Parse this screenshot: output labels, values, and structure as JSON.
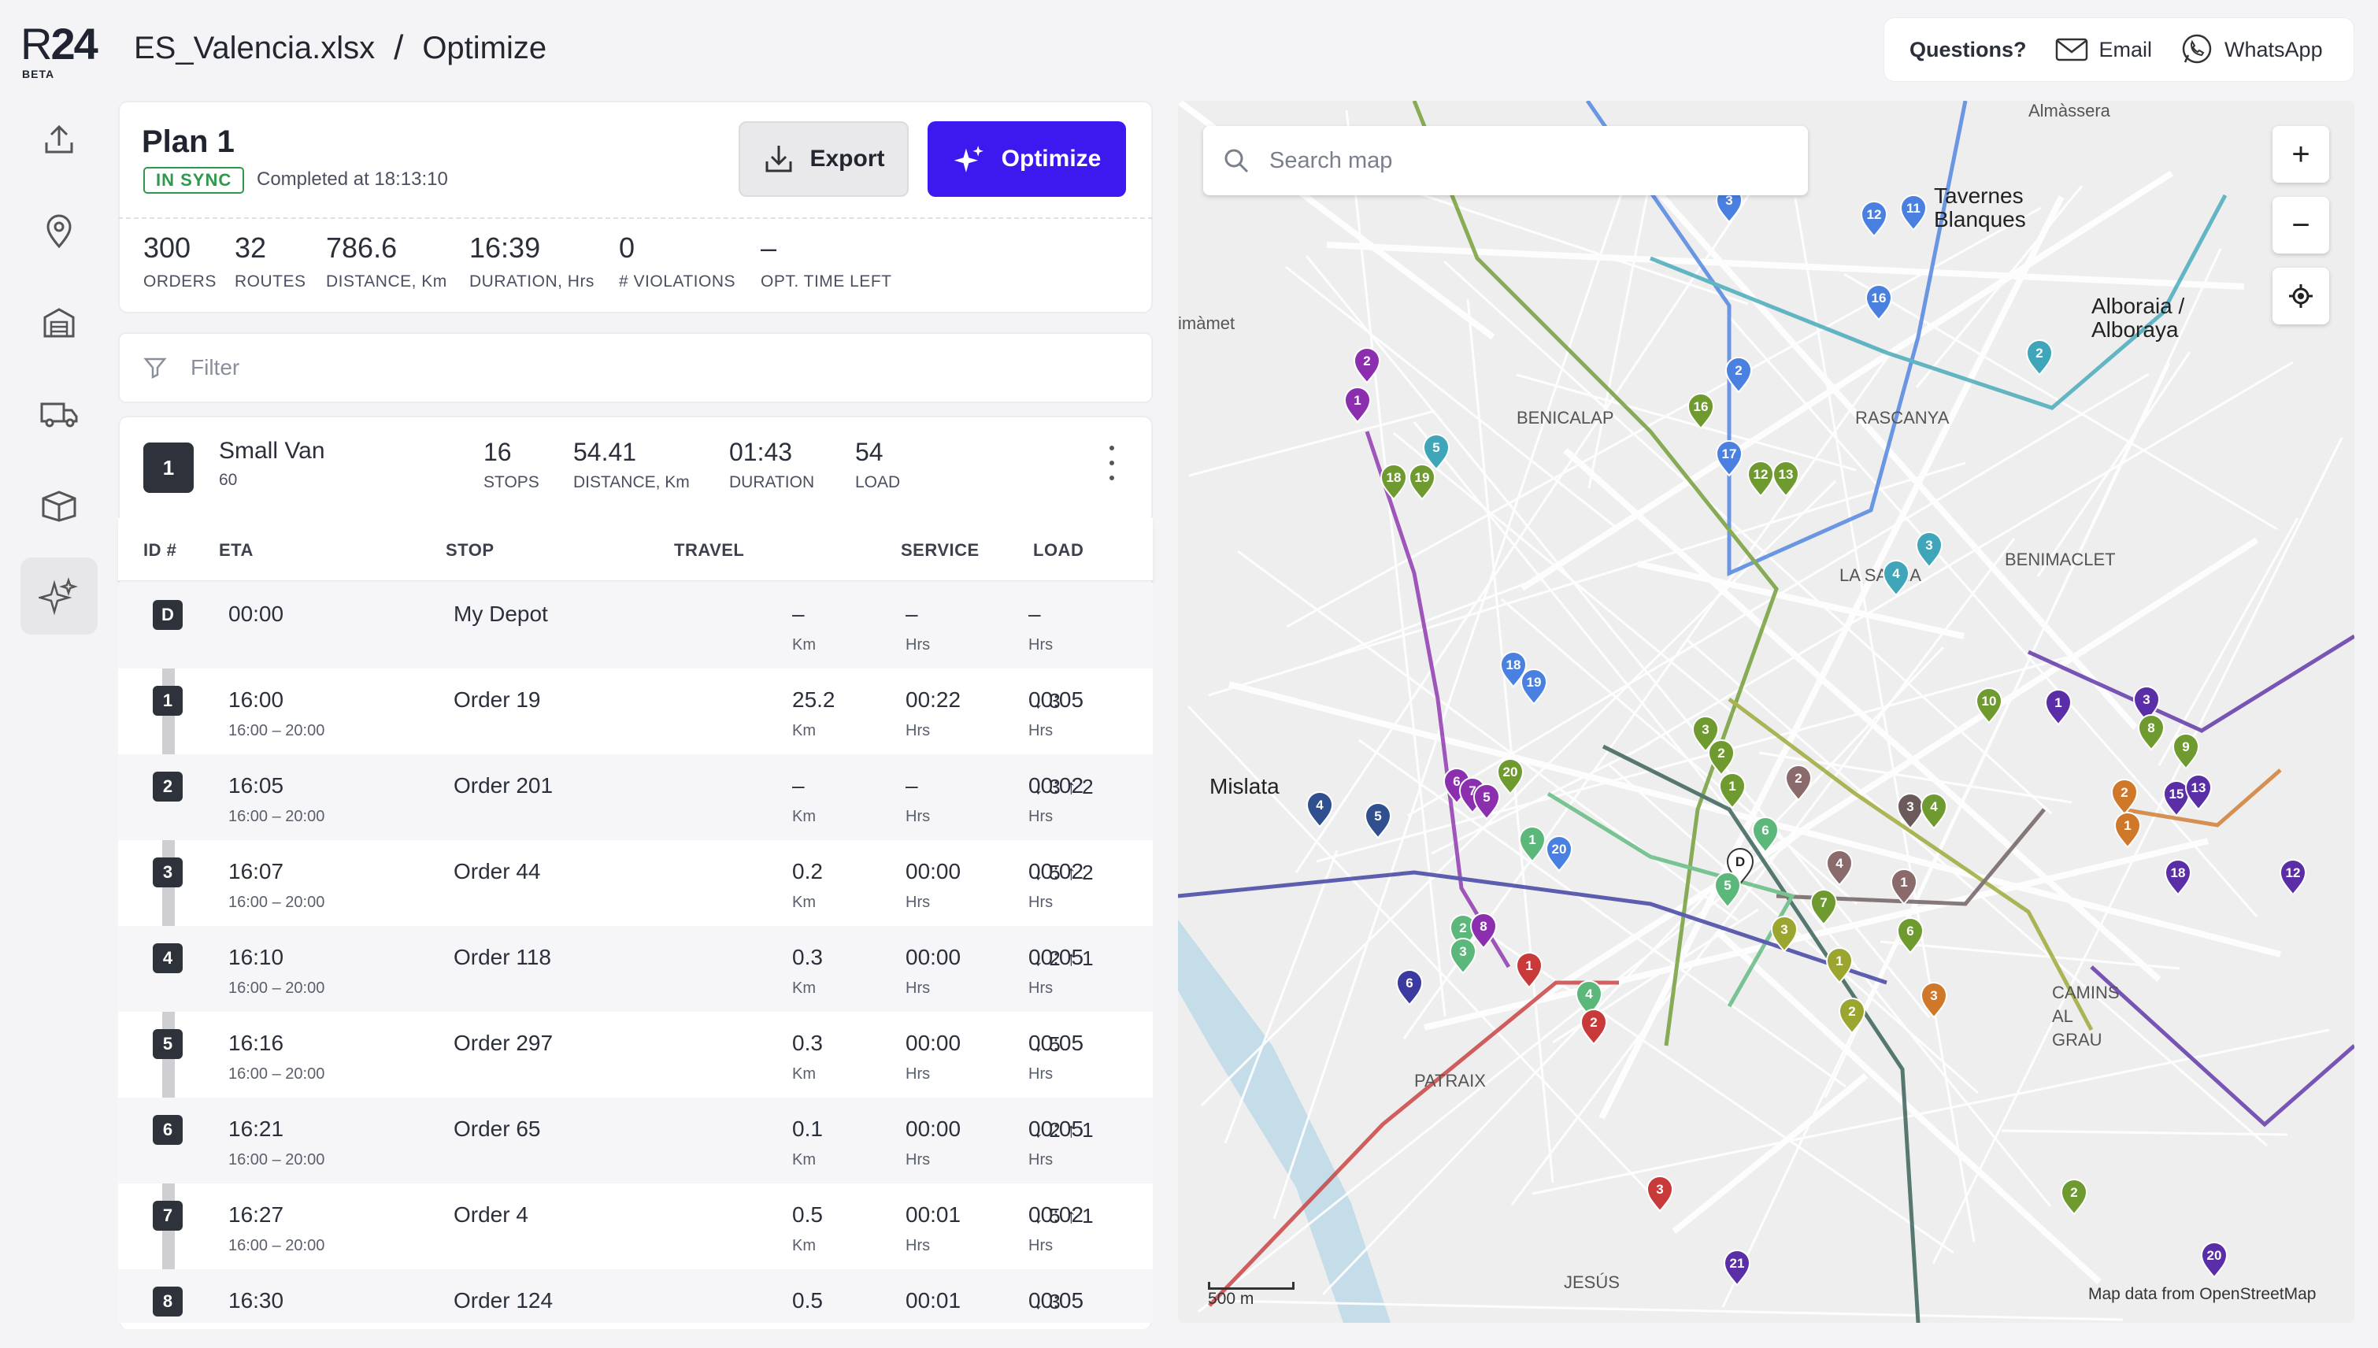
{
  "app": {
    "logo_r": "R",
    "logo_num": "24",
    "beta": "BETA"
  },
  "breadcrumb": {
    "file": "ES_Valencia.xlsx",
    "sep": "/",
    "page": "Optimize"
  },
  "help": {
    "questions": "Questions?",
    "email": "Email",
    "whatsapp": "WhatsApp"
  },
  "plan": {
    "title": "Plan 1",
    "status": "IN SYNC",
    "completed": "Completed at 18:13:10",
    "export_label": "Export",
    "optimize_label": "Optimize",
    "stats": [
      {
        "value": "300",
        "label": "ORDERS"
      },
      {
        "value": "32",
        "label": "ROUTES"
      },
      {
        "value": "786.6",
        "label": "DISTANCE, Km"
      },
      {
        "value": "16:39",
        "label": "DURATION, Hrs"
      },
      {
        "value": "0",
        "label": "# VIOLATIONS"
      },
      {
        "value": "–",
        "label": "OPT. TIME LEFT"
      }
    ]
  },
  "filter": {
    "placeholder": "Filter"
  },
  "vehicle": {
    "number": "1",
    "name": "Small Van",
    "capacity": "60",
    "stats": [
      {
        "value": "16",
        "label": "STOPS"
      },
      {
        "value": "54.41",
        "label": "DISTANCE, Km"
      },
      {
        "value": "01:43",
        "label": "DURATION"
      },
      {
        "value": "54",
        "label": "LOAD"
      }
    ]
  },
  "table": {
    "headers": {
      "id": "ID #",
      "eta": "ETA",
      "stop": "STOP",
      "travel": "TRAVEL",
      "service": "SERVICE",
      "load": "LOAD"
    },
    "rows": [
      {
        "id": "D",
        "eta": "00:00",
        "window": "",
        "stop": "My Depot",
        "dist": "–",
        "dist_u": "Km",
        "time": "–",
        "time_u": "Hrs",
        "service": "–",
        "service_u": "Hrs",
        "load": ""
      },
      {
        "id": "1",
        "eta": "16:00",
        "window": "16:00 – 20:00",
        "stop": "Order 19",
        "dist": "25.2",
        "dist_u": "Km",
        "time": "00:22",
        "time_u": "Hrs",
        "service": "00:05",
        "service_u": "Hrs",
        "load": "↓ 3"
      },
      {
        "id": "2",
        "eta": "16:05",
        "window": "16:00 – 20:00",
        "stop": "Order 201",
        "dist": "–",
        "dist_u": "Km",
        "time": "–",
        "time_u": "Hrs",
        "service": "00:02",
        "service_u": "Hrs",
        "load": "↓ 3  ↑ 2"
      },
      {
        "id": "3",
        "eta": "16:07",
        "window": "16:00 – 20:00",
        "stop": "Order 44",
        "dist": "0.2",
        "dist_u": "Km",
        "time": "00:00",
        "time_u": "Hrs",
        "service": "00:02",
        "service_u": "Hrs",
        "load": "↓ 5  ↑ 2"
      },
      {
        "id": "4",
        "eta": "16:10",
        "window": "16:00 – 20:00",
        "stop": "Order 118",
        "dist": "0.3",
        "dist_u": "Km",
        "time": "00:00",
        "time_u": "Hrs",
        "service": "00:05",
        "service_u": "Hrs",
        "load": "↓ 2  ↑ 1"
      },
      {
        "id": "5",
        "eta": "16:16",
        "window": "16:00 – 20:00",
        "stop": "Order 297",
        "dist": "0.3",
        "dist_u": "Km",
        "time": "00:00",
        "time_u": "Hrs",
        "service": "00:05",
        "service_u": "Hrs",
        "load": "↓ 5"
      },
      {
        "id": "6",
        "eta": "16:21",
        "window": "16:00 – 20:00",
        "stop": "Order 65",
        "dist": "0.1",
        "dist_u": "Km",
        "time": "00:00",
        "time_u": "Hrs",
        "service": "00:05",
        "service_u": "Hrs",
        "load": "↓ 2  ↑ 1"
      },
      {
        "id": "7",
        "eta": "16:27",
        "window": "16:00 – 20:00",
        "stop": "Order 4",
        "dist": "0.5",
        "dist_u": "Km",
        "time": "00:01",
        "time_u": "Hrs",
        "service": "00:02",
        "service_u": "Hrs",
        "load": "↓ 5  ↑ 1"
      },
      {
        "id": "8",
        "eta": "16:30",
        "window": "16:00 – 20:00",
        "stop": "Order 124",
        "dist": "0.5",
        "dist_u": "Km",
        "time": "00:01",
        "time_u": "Hrs",
        "service": "00:05",
        "service_u": "Hrs",
        "load": "↓ 3"
      }
    ]
  },
  "map": {
    "search_placeholder": "Search map",
    "zoom_in": "+",
    "zoom_out": "−",
    "scale": "500 m",
    "attribution": "Map data from OpenStreetMap",
    "places": [
      "Tavernes Blanques",
      "Alboraia / Alboraya",
      "imàmet",
      "BENICALAP",
      "RASCANYA",
      "LA SAÏDIA",
      "BENIMACLET",
      "Mislata",
      "PATRAIX",
      "CAMINS AL GRAU",
      "JESÚS",
      "Almàssera"
    ],
    "markers": [
      {
        "label": "2",
        "color": "#8b2fae"
      },
      {
        "label": "1",
        "color": "#8b2fae"
      },
      {
        "label": "5",
        "color": "#3ea6b8"
      },
      {
        "label": "18",
        "color": "#6e9a2f"
      },
      {
        "label": "19",
        "color": "#6e9a2f"
      },
      {
        "label": "2",
        "color": "#4a80e0"
      },
      {
        "label": "16",
        "color": "#6e9a2f"
      },
      {
        "label": "17",
        "color": "#4a80e0"
      },
      {
        "label": "12",
        "color": "#6e9a2f"
      },
      {
        "label": "13",
        "color": "#6e9a2f"
      },
      {
        "label": "3",
        "color": "#4a80e0"
      },
      {
        "label": "12",
        "color": "#4a80e0"
      },
      {
        "label": "11",
        "color": "#4a80e0"
      },
      {
        "label": "16",
        "color": "#4a80e0"
      },
      {
        "label": "2",
        "color": "#3ea6b8"
      },
      {
        "label": "3",
        "color": "#3ea6b8"
      },
      {
        "label": "4",
        "color": "#3ea6b8"
      },
      {
        "label": "18",
        "color": "#4a80e0"
      },
      {
        "label": "19",
        "color": "#4a80e0"
      },
      {
        "label": "10",
        "color": "#6e9a2f"
      },
      {
        "label": "1",
        "color": "#5a2ea6"
      },
      {
        "label": "3",
        "color": "#5a2ea6"
      },
      {
        "label": "8",
        "color": "#6e9a2f"
      },
      {
        "label": "9",
        "color": "#6e9a2f"
      },
      {
        "label": "2",
        "color": "#d0782a"
      },
      {
        "label": "1",
        "color": "#d0782a"
      },
      {
        "label": "15",
        "color": "#5a2ea6"
      },
      {
        "label": "13",
        "color": "#5a2ea6"
      },
      {
        "label": "18",
        "color": "#5a2ea6"
      },
      {
        "label": "12",
        "color": "#5a2ea6"
      },
      {
        "label": "4",
        "color": "#2f4f8f"
      },
      {
        "label": "5",
        "color": "#2f4f8f"
      },
      {
        "label": "6",
        "color": "#8b2fae"
      },
      {
        "label": "7",
        "color": "#8b2fae"
      },
      {
        "label": "5",
        "color": "#8b2fae"
      },
      {
        "label": "20",
        "color": "#6e9a2f"
      },
      {
        "label": "1",
        "color": "#5cb87a"
      },
      {
        "label": "20",
        "color": "#4a80e0"
      },
      {
        "label": "3",
        "color": "#6e9a2f"
      },
      {
        "label": "2",
        "color": "#6e9a2f"
      },
      {
        "label": "1",
        "color": "#6e9a2f"
      },
      {
        "label": "2",
        "color": "#8a6a6a"
      },
      {
        "label": "6",
        "color": "#5cb87a"
      },
      {
        "label": "D",
        "color": "#ffffff"
      },
      {
        "label": "5",
        "color": "#5cb87a"
      },
      {
        "label": "3",
        "color": "#6a5a5a"
      },
      {
        "label": "4",
        "color": "#6e9a2f"
      },
      {
        "label": "4",
        "color": "#8a6a6a"
      },
      {
        "label": "7",
        "color": "#6e9a2f"
      },
      {
        "label": "1",
        "color": "#8a6a6a"
      },
      {
        "label": "3",
        "color": "#9aa62f"
      },
      {
        "label": "1",
        "color": "#9aa62f"
      },
      {
        "label": "2",
        "color": "#9aa62f"
      },
      {
        "label": "3",
        "color": "#d0782a"
      },
      {
        "label": "2",
        "color": "#5cb87a"
      },
      {
        "label": "3",
        "color": "#5cb87a"
      },
      {
        "label": "8",
        "color": "#8b2fae"
      },
      {
        "label": "6",
        "color": "#3a3aa0"
      },
      {
        "label": "1",
        "color": "#c83a3a"
      },
      {
        "label": "4",
        "color": "#5cb87a"
      },
      {
        "label": "2",
        "color": "#c83a3a"
      },
      {
        "label": "3",
        "color": "#c83a3a"
      },
      {
        "label": "21",
        "color": "#5a2ea6"
      },
      {
        "label": "2",
        "color": "#6e9a2f"
      },
      {
        "label": "20",
        "color": "#5a2ea6"
      },
      {
        "label": "6",
        "color": "#6e9a2f"
      }
    ]
  }
}
